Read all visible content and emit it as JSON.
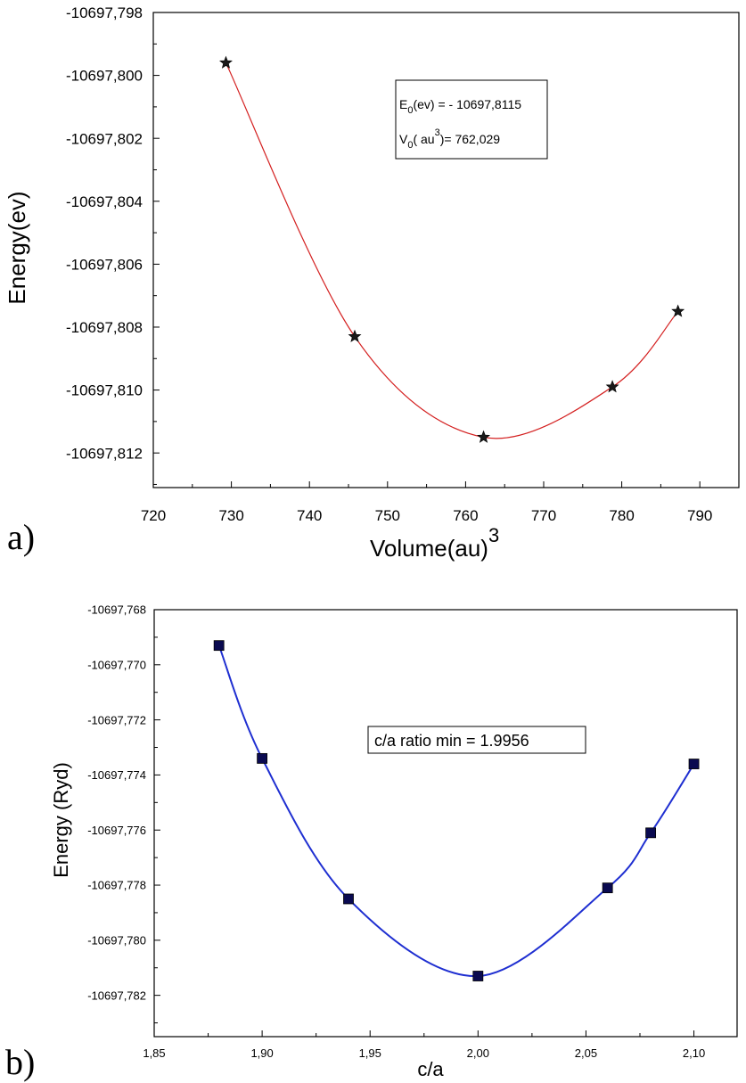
{
  "chart_data": [
    {
      "type": "line",
      "panel_label": "a)",
      "xlabel": "Volume(au)",
      "xlabel_sup": "3",
      "ylabel": "Energy(ev)",
      "xlim": [
        720,
        795
      ],
      "ylim": [
        -10697.8131,
        -10697.798
      ],
      "xticks": [
        720,
        730,
        740,
        750,
        760,
        770,
        780,
        790
      ],
      "xtick_labels": [
        "720",
        "730",
        "740",
        "750",
        "760",
        "770",
        "780",
        "790"
      ],
      "yticks": [
        -10697.798,
        -10697.8,
        -10697.802,
        -10697.804,
        -10697.806,
        -10697.808,
        -10697.81,
        -10697.812
      ],
      "ytick_labels": [
        "-10697,798",
        "-10697,800",
        "-10697,802",
        "-10697,804",
        "-10697,806",
        "-10697,808",
        "-10697,810",
        "-10697,812"
      ],
      "series": [
        {
          "marker": "star",
          "line_color": "#d42020",
          "marker_color": "#1a1a1a",
          "x": [
            729.3,
            745.8,
            762.3,
            778.8,
            787.2
          ],
          "y": [
            -10697.7996,
            -10697.8083,
            -10697.8115,
            -10697.8099,
            -10697.8075
          ]
        }
      ],
      "annotation": {
        "line1_pre": "E",
        "line1_sub": "0",
        "line1_post": "(ev) = - 10697,8115",
        "line2_pre": "V",
        "line2_sub": "0",
        "line2_mid": "( au",
        "line2_sup": "3",
        "line2_post": ")= 762,029"
      }
    },
    {
      "type": "line",
      "panel_label": "b)",
      "xlabel": "c/a",
      "ylabel": "Energy (Ryd)",
      "xlim": [
        1.85,
        2.12
      ],
      "ylim": [
        -10697.7835,
        -10697.768
      ],
      "xticks": [
        1.85,
        1.9,
        1.95,
        2.0,
        2.05,
        2.1
      ],
      "xtick_labels": [
        "1,85",
        "1,90",
        "1,95",
        "2,00",
        "2,05",
        "2,10"
      ],
      "yticks": [
        -10697.768,
        -10697.77,
        -10697.772,
        -10697.774,
        -10697.776,
        -10697.778,
        -10697.78,
        -10697.782
      ],
      "ytick_labels": [
        "-10697,768",
        "-10697,770",
        "-10697,772",
        "-10697,774",
        "-10697,776",
        "-10697,778",
        "-10697,780",
        "-10697,782"
      ],
      "series": [
        {
          "marker": "square",
          "line_color": "#1f2fd1",
          "marker_color": "#0a0a50",
          "x": [
            1.88,
            1.9,
            1.94,
            2.0,
            2.06,
            2.08,
            2.1
          ],
          "y": [
            -10697.7693,
            -10697.7734,
            -10697.7785,
            -10697.7813,
            -10697.7781,
            -10697.7761,
            -10697.7736
          ]
        }
      ],
      "annotation": {
        "text": "c/a ratio min = 1.9956"
      }
    }
  ]
}
